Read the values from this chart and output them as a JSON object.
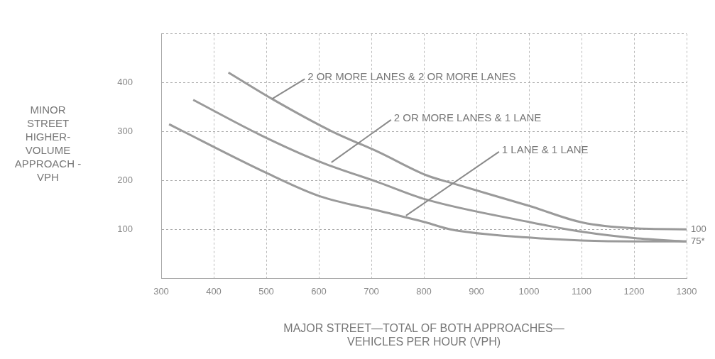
{
  "chart_data": {
    "type": "line",
    "xlabel": "MAJOR STREET—TOTAL OF BOTH APPROACHES—\nVEHICLES PER HOUR (VPH)",
    "ylabel": "MINOR\nSTREET\nHIGHER-\nVOLUME\nAPPROACH -\nVPH",
    "xlim": [
      300,
      1300
    ],
    "xticks": [
      300,
      400,
      500,
      600,
      700,
      800,
      900,
      1000,
      1100,
      1200,
      1300
    ],
    "ylim": [
      0,
      500
    ],
    "yticks": [
      {
        "value": 0,
        "label": null
      },
      100,
      200,
      300,
      400,
      {
        "value": 500,
        "label": null
      }
    ],
    "grid": true,
    "legend": false,
    "marker": "none",
    "line_style": "solid",
    "series": [
      {
        "color": "#9a9a9a",
        "x": [
          428,
          511,
          624,
          714,
          804,
          858,
          1003,
          1101,
          1200,
          1300
        ],
        "values": [
          421,
          367,
          301,
          258,
          211,
          193,
          147,
          114,
          102,
          100
        ]
      },
      {
        "color": "#9a9a9a",
        "x": [
          361,
          489,
          605,
          714,
          804,
          1000,
          1100,
          1200,
          1300
        ],
        "values": [
          365,
          293,
          237,
          196,
          161,
          115,
          95,
          82,
          75
        ]
      },
      {
        "color": "#9a9a9a",
        "x": [
          315,
          503,
          601,
          714,
          804,
          850,
          1000,
          1100,
          1200,
          1300
        ],
        "values": [
          315,
          214,
          168,
          138,
          114,
          100,
          83,
          77,
          75,
          75
        ]
      }
    ],
    "annotations": [
      {
        "text": "2 OR MORE LANES & 2 OR MORE LANES",
        "x": 511,
        "y": 367
      },
      {
        "text": "2 OR MORE LANES & 1 LANE",
        "x": 624,
        "y": 237
      },
      {
        "text": "1 LANE & 1 LANE",
        "x": 766,
        "y": 128
      },
      {
        "text": "100",
        "x": 1300,
        "y": 100
      },
      {
        "text": "75*",
        "x": 1300,
        "y": 75
      }
    ]
  }
}
